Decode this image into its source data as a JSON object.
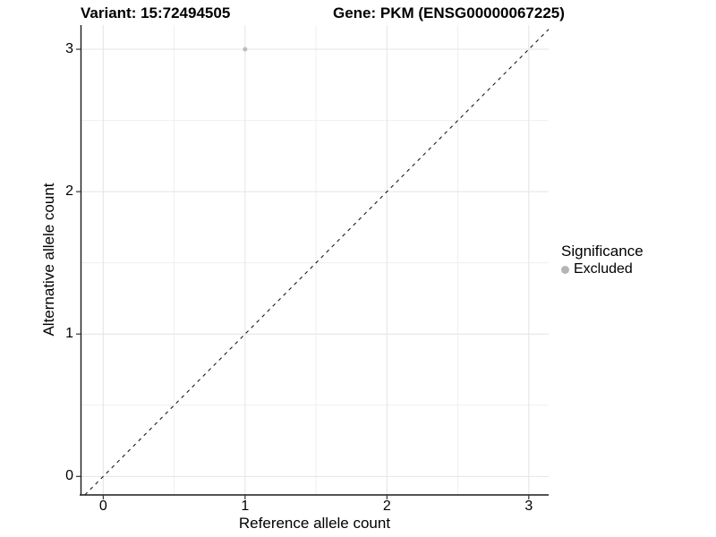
{
  "chart_data": {
    "type": "scatter",
    "title_left": "Variant: 15:72494505",
    "title_right": "Gene: PKM (ENSG00000067225)",
    "xlabel": "Reference allele count",
    "ylabel": "Alternative allele count",
    "xlim": [
      -0.16,
      3.14
    ],
    "ylim": [
      -0.13,
      3.17
    ],
    "x_ticks": [
      0,
      1,
      2,
      3
    ],
    "y_ticks": [
      0,
      1,
      2,
      3
    ],
    "x_minor_ticks": [
      0.5,
      1.5,
      2.5
    ],
    "y_minor_ticks": [
      0.5,
      1.5,
      2.5
    ],
    "grid": true,
    "legend_position": "right",
    "reference_line": {
      "kind": "abline",
      "slope": 1,
      "intercept": 0,
      "style": "dashed",
      "color": "#1a1a1a"
    },
    "series": [
      {
        "name": "Excluded",
        "color": "#bdbdbd",
        "point_radius": 2.5,
        "points": [
          {
            "x": 1,
            "y": 3
          }
        ]
      }
    ]
  },
  "legend": {
    "title": "Significance",
    "items": [
      {
        "label": "Excluded",
        "color": "#b5b5b5"
      }
    ]
  },
  "colors": {
    "background": "#ffffff",
    "grid_major": "#e4e4e4",
    "grid_minor": "#efefef",
    "axis_line": "#1a1a1a",
    "tick_mark": "#333333",
    "text": "#000000"
  }
}
